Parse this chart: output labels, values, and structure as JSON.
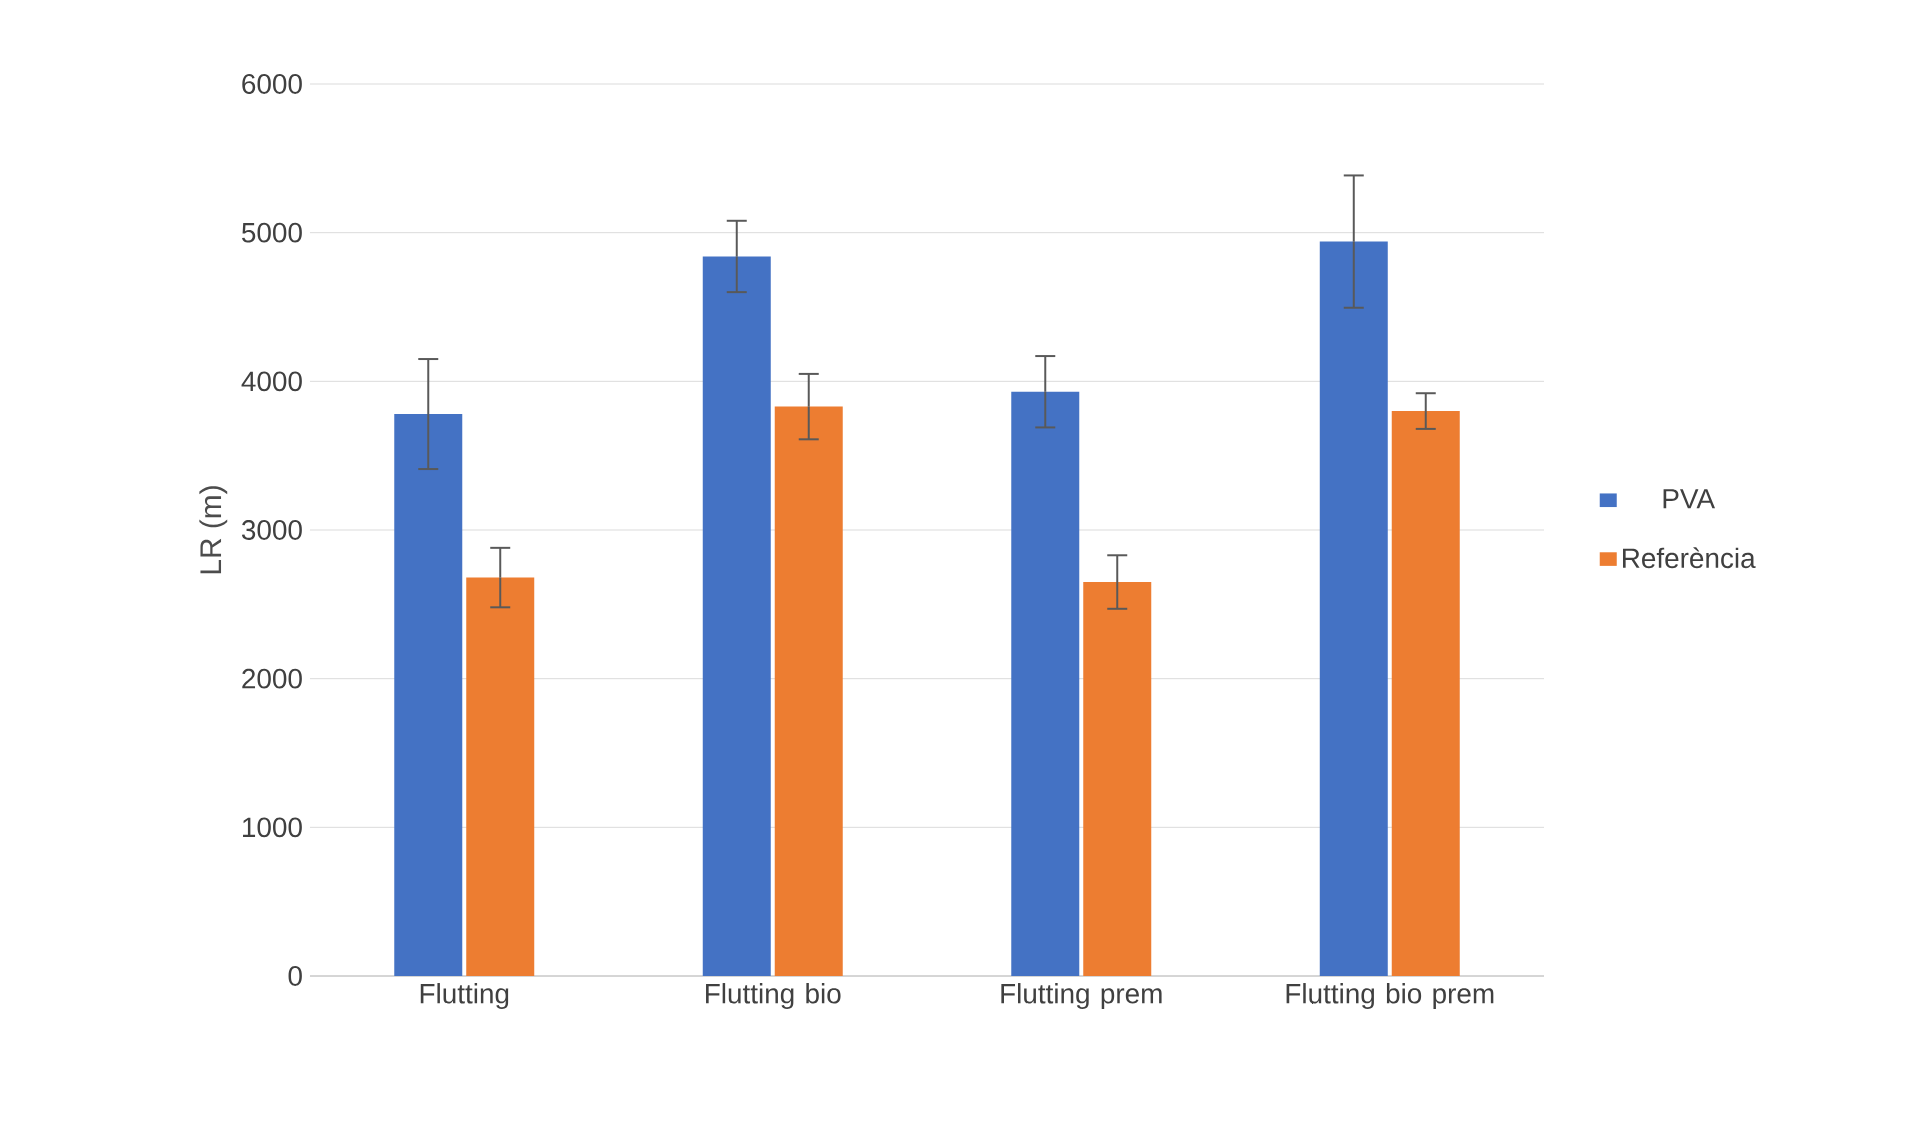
{
  "chart_data": {
    "type": "bar",
    "ylabel": "LR (m)",
    "categories": [
      "Flutting",
      "Flutting bio",
      "Flutting prem",
      "Flutting bio prem"
    ],
    "series": [
      {
        "name": "PVA",
        "color": "#4472c4",
        "values": [
          3780,
          4840,
          3930,
          4940
        ],
        "errors": [
          370,
          240,
          240,
          445
        ]
      },
      {
        "name": "Referència",
        "color": "#ed7d31",
        "values": [
          2680,
          3830,
          2650,
          3800
        ],
        "errors": [
          200,
          220,
          180,
          120
        ]
      }
    ],
    "ylim": [
      0,
      6000
    ],
    "yticks": [
      0,
      1000,
      2000,
      3000,
      4000,
      5000,
      6000
    ],
    "grid": "y",
    "legend": "right"
  }
}
